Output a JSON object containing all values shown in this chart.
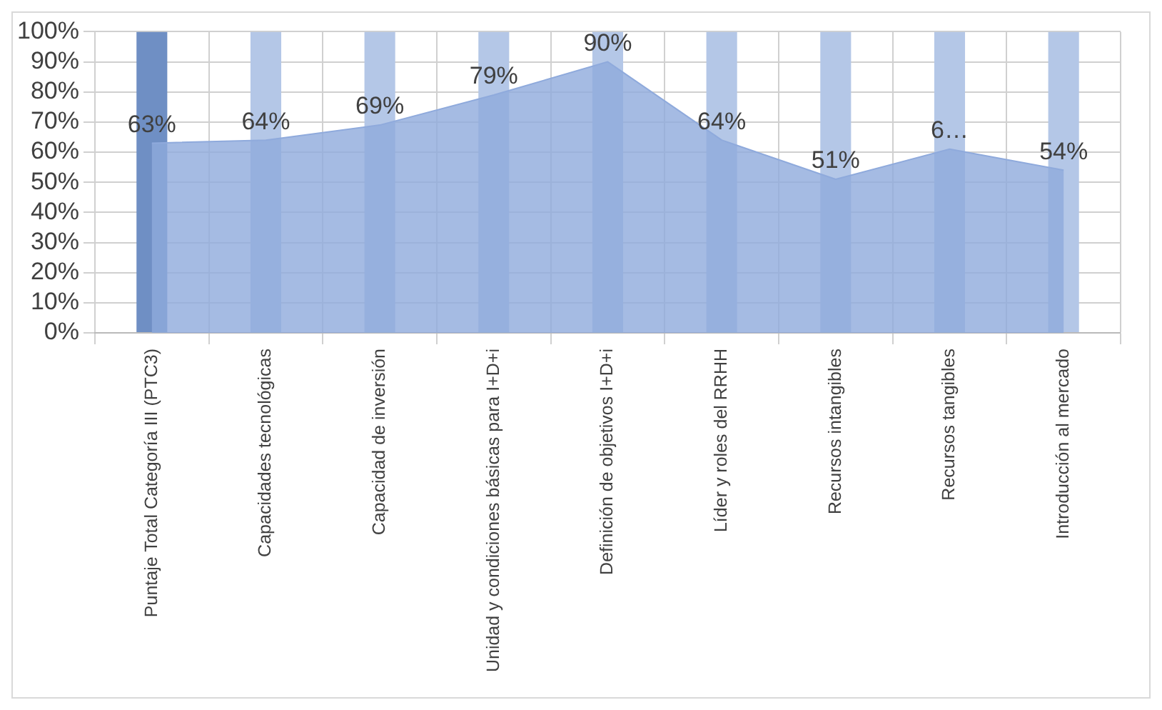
{
  "chart_data": {
    "type": "area",
    "categories": [
      "Puntaje Total Categoría III (PTC3)",
      "Capacidades tecnológicas",
      "Capacidad de inversión",
      "Unidad y condiciones básicas para I+D+i",
      "Definición de objetivos I+D+i",
      "Líder y roles del RRHH",
      "Recursos intangibles",
      "Recursos tangibles",
      "Introducción al mercado"
    ],
    "series": [
      {
        "type": "bar",
        "colors": [
          "#6f8fc4",
          "#b4c7e7",
          "#b4c7e7",
          "#b4c7e7",
          "#b4c7e7",
          "#b4c7e7",
          "#b4c7e7",
          "#b4c7e7",
          "#b4c7e7"
        ],
        "values": [
          100,
          100,
          100,
          100,
          100,
          100,
          100,
          100,
          100
        ]
      },
      {
        "color": "#8faadc",
        "values": [
          63,
          64,
          69,
          79,
          90,
          64,
          51,
          61,
          54
        ],
        "value_labels": [
          "63%",
          "64%",
          "69%",
          "79%",
          "90%",
          "64%",
          "51%",
          "6…",
          "54%"
        ]
      }
    ],
    "ylim": [
      0,
      100
    ],
    "yticks": [
      {
        "value": 0,
        "label": "0%"
      },
      {
        "value": 10,
        "label": "10%"
      },
      {
        "value": 20,
        "label": "20%"
      },
      {
        "value": 30,
        "label": "30%"
      },
      {
        "value": 40,
        "label": "40%"
      },
      {
        "value": 50,
        "label": "50%"
      },
      {
        "value": 60,
        "label": "60%"
      },
      {
        "value": 70,
        "label": "70%"
      },
      {
        "value": 80,
        "label": "80%"
      },
      {
        "value": 90,
        "label": "90%"
      },
      {
        "value": 100,
        "label": "100%"
      }
    ],
    "grid": true,
    "legend": false
  }
}
